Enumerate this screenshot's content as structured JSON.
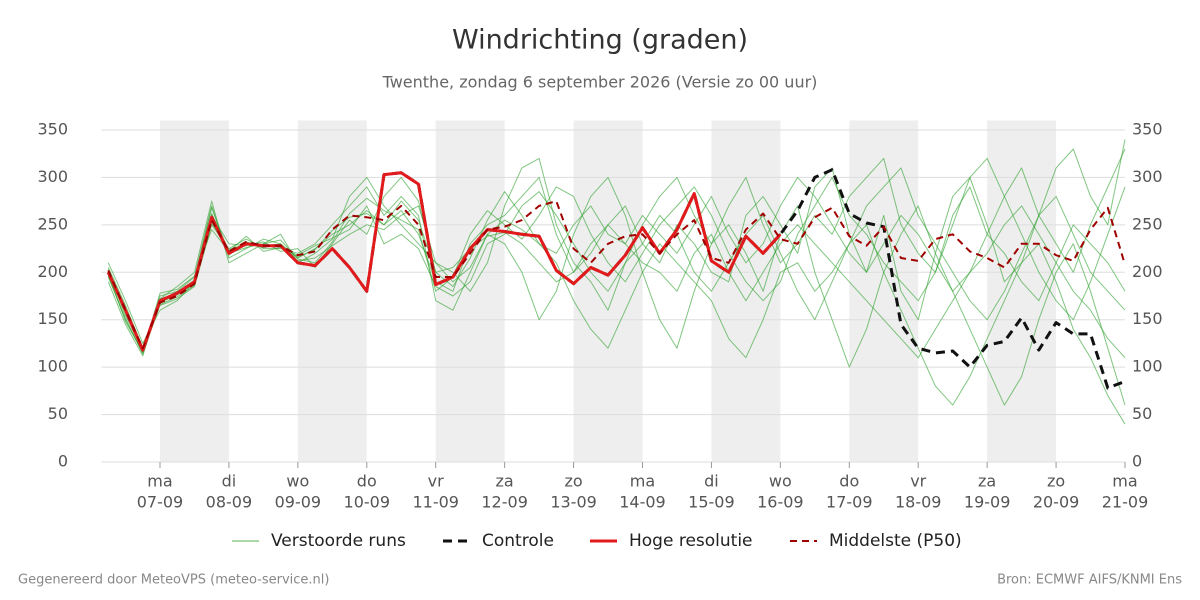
{
  "chart_data": {
    "type": "line",
    "title": "Windrichting (graden)",
    "subtitle": "Twenthe, zondag  6 september 2026 (Versie zo 00 uur)",
    "footer_left": "Gegenereerd door MeteoVPS (meteo-service.nl)",
    "footer_right": "Bron: ECMWF AIFS/KNMI Ens",
    "x": [
      6.25,
      6.5,
      6.75,
      7,
      7.25,
      7.5,
      7.75,
      8,
      8.25,
      8.5,
      8.75,
      9,
      9.25,
      9.5,
      9.75,
      10,
      10.25,
      10.5,
      10.75,
      11,
      11.25,
      11.5,
      11.75,
      12,
      12.25,
      12.5,
      12.75,
      13,
      13.25,
      13.5,
      13.75,
      14,
      14.25,
      14.5,
      14.75,
      15,
      15.25,
      15.5,
      15.75,
      16,
      16.25,
      16.5,
      16.75,
      17,
      17.25,
      17.5,
      17.75,
      18,
      18.25,
      18.5,
      18.75,
      19,
      19.25,
      19.5,
      19.75,
      20,
      20.25,
      20.5,
      20.75,
      21
    ],
    "xlim": [
      6.15,
      21
    ],
    "xticks": [
      {
        "value": 7,
        "label": "07-09"
      },
      {
        "value": 8,
        "label": "08-09"
      },
      {
        "value": 9,
        "label": "09-09"
      },
      {
        "value": 10,
        "label": "10-09"
      },
      {
        "value": 11,
        "label": "11-09"
      },
      {
        "value": 12,
        "label": "12-09"
      },
      {
        "value": 13,
        "label": "13-09"
      },
      {
        "value": 14,
        "label": "14-09"
      },
      {
        "value": 15,
        "label": "15-09"
      },
      {
        "value": 16,
        "label": "16-09"
      },
      {
        "value": 17,
        "label": "17-09"
      },
      {
        "value": 18,
        "label": "18-09"
      },
      {
        "value": 19,
        "label": "19-09"
      },
      {
        "value": 20,
        "label": "20-09"
      },
      {
        "value": 21,
        "label": "21-09"
      }
    ],
    "weekdays": [
      "ma",
      "di",
      "wo",
      "do",
      "vr",
      "za",
      "zo",
      "ma",
      "di",
      "wo",
      "do",
      "vr",
      "za",
      "zo",
      "ma"
    ],
    "ylim": [
      0,
      360
    ],
    "yticks": [
      0,
      50,
      100,
      150,
      200,
      250,
      300,
      350
    ],
    "grid": true,
    "series": [
      {
        "name": "Verstoorde runs",
        "color": "#2ca02c",
        "style": "thin",
        "members": [
          [
            195,
            150,
            115,
            175,
            180,
            195,
            270,
            215,
            225,
            235,
            230,
            215,
            225,
            240,
            250,
            265,
            250,
            265,
            240,
            190,
            180,
            230,
            250,
            260,
            280,
            300,
            240,
            200,
            230,
            250,
            270,
            230,
            210,
            250,
            230,
            200,
            190,
            260,
            280,
            250,
            220,
            290,
            310,
            240,
            200,
            260,
            180,
            150,
            220,
            280,
            300,
            250,
            190,
            210,
            260,
            310,
            330,
            280,
            250,
            340
          ],
          [
            205,
            165,
            120,
            165,
            172,
            185,
            250,
            225,
            235,
            225,
            225,
            220,
            230,
            250,
            270,
            290,
            260,
            280,
            260,
            170,
            160,
            200,
            240,
            230,
            200,
            150,
            180,
            240,
            280,
            300,
            260,
            200,
            150,
            120,
            180,
            230,
            250,
            220,
            180,
            240,
            270,
            200,
            150,
            100,
            140,
            200,
            240,
            270,
            220,
            180,
            140,
            100,
            60,
            90,
            150,
            200,
            230,
            180,
            120,
            60
          ],
          [
            190,
            145,
            112,
            172,
            185,
            200,
            275,
            210,
            220,
            230,
            240,
            210,
            220,
            235,
            280,
            300,
            270,
            250,
            230,
            210,
            200,
            180,
            210,
            270,
            310,
            320,
            250,
            210,
            190,
            160,
            210,
            250,
            280,
            300,
            260,
            230,
            270,
            300,
            250,
            210,
            230,
            260,
            240,
            280,
            300,
            320,
            250,
            220,
            200,
            260,
            290,
            240,
            280,
            310,
            260,
            230,
            200,
            250,
            290,
            330
          ],
          [
            210,
            170,
            125,
            160,
            170,
            190,
            260,
            230,
            228,
            232,
            222,
            225,
            205,
            230,
            255,
            240,
            280,
            300,
            275,
            200,
            185,
            215,
            255,
            285,
            260,
            230,
            210,
            170,
            140,
            120,
            160,
            200,
            230,
            210,
            190,
            170,
            130,
            110,
            150,
            200,
            210,
            180,
            200,
            230,
            250,
            200,
            160,
            120,
            80,
            60,
            90,
            130,
            170,
            210,
            230,
            190,
            140,
            110,
            70,
            40
          ],
          [
            200,
            155,
            118,
            168,
            176,
            188,
            262,
            218,
            232,
            226,
            230,
            212,
            215,
            228,
            240,
            250,
            245,
            260,
            270,
            210,
            190,
            205,
            240,
            255,
            245,
            230,
            220,
            250,
            270,
            240,
            230,
            260,
            240,
            220,
            250,
            280,
            240,
            210,
            230,
            270,
            300,
            280,
            250,
            220,
            200,
            230,
            260,
            240,
            210,
            180,
            200,
            240,
            220,
            190,
            170,
            210,
            250,
            230,
            210,
            180
          ],
          [
            198,
            148,
            116,
            178,
            182,
            196,
            245,
            222,
            238,
            222,
            226,
            218,
            228,
            236,
            245,
            270,
            230,
            240,
            225,
            185,
            175,
            190,
            230,
            240,
            270,
            285,
            260,
            230,
            200,
            180,
            210,
            230,
            260,
            240,
            200,
            180,
            210,
            240,
            260,
            220,
            180,
            150,
            190,
            230,
            270,
            290,
            310,
            260,
            230,
            200,
            170,
            150,
            180,
            220,
            260,
            280,
            240,
            200,
            180,
            160
          ],
          [
            203,
            158,
            119,
            170,
            178,
            192,
            268,
            220,
            226,
            230,
            234,
            214,
            210,
            232,
            262,
            278,
            265,
            255,
            245,
            180,
            195,
            240,
            265,
            250,
            235,
            260,
            290,
            280,
            240,
            210,
            190,
            220,
            250,
            270,
            290,
            260,
            220,
            190,
            170,
            190,
            240,
            270,
            300,
            260,
            240,
            210,
            190,
            170,
            200,
            250,
            300,
            320,
            280,
            240,
            200,
            170,
            150,
            190,
            240,
            290
          ],
          [
            196,
            152,
            114,
            166,
            174,
            186,
            252,
            224,
            230,
            228,
            228,
            216,
            224,
            244,
            258,
            262,
            250,
            275,
            255,
            200,
            205,
            225,
            238,
            242,
            230,
            210,
            190,
            200,
            220,
            250,
            230,
            210,
            200,
            180,
            220,
            240,
            200,
            170,
            200,
            230,
            250,
            230,
            210,
            190,
            170,
            150,
            130,
            110,
            140,
            170,
            200,
            220,
            250,
            270,
            240,
            210,
            180,
            160,
            130,
            110
          ]
        ]
      },
      {
        "name": "Controle",
        "color": "#111111",
        "style": "dashed",
        "values": [
          200,
          160,
          118,
          170,
          178,
          190,
          258,
          220,
          230,
          228,
          228,
          210,
          207,
          225,
          205,
          180,
          303,
          305,
          293,
          187,
          195,
          225,
          245,
          243,
          240,
          238,
          202,
          188,
          205,
          197,
          218,
          247,
          220,
          245,
          283,
          212,
          200,
          238,
          220,
          240,
          265,
          300,
          308,
          262,
          252,
          248,
          145,
          120,
          115,
          117,
          100,
          123,
          127,
          152,
          118,
          147,
          135,
          135,
          78,
          85
        ]
      },
      {
        "name": "Hoge resolutie",
        "color": "#e31a1c",
        "style": "thick",
        "values": [
          200,
          160,
          118,
          170,
          178,
          190,
          258,
          220,
          230,
          228,
          228,
          210,
          207,
          225,
          205,
          180,
          303,
          305,
          293,
          187,
          195,
          225,
          245,
          243,
          240,
          238,
          202,
          188,
          205,
          197,
          218,
          247,
          220,
          245,
          283,
          212,
          200,
          238,
          220,
          240,
          null,
          null,
          null,
          null,
          null,
          null,
          null,
          null,
          null,
          null,
          null,
          null,
          null,
          null,
          null,
          null,
          null,
          null,
          null,
          null
        ]
      },
      {
        "name": "Middelste (P50)",
        "color": "#a00000",
        "style": "dashed-thin",
        "values": [
          202,
          160,
          120,
          168,
          175,
          188,
          255,
          222,
          232,
          228,
          228,
          218,
          222,
          245,
          260,
          258,
          255,
          270,
          250,
          195,
          195,
          220,
          245,
          248,
          255,
          270,
          275,
          225,
          210,
          230,
          238,
          240,
          220,
          240,
          255,
          215,
          210,
          245,
          262,
          235,
          230,
          258,
          268,
          238,
          228,
          248,
          215,
          212,
          235,
          240,
          222,
          215,
          205,
          230,
          230,
          218,
          212,
          245,
          268,
          208
        ]
      }
    ]
  }
}
